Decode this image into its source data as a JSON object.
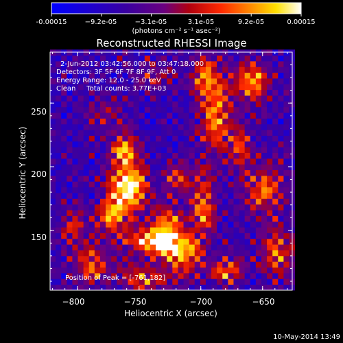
{
  "chart_data": {
    "type": "heatmap",
    "title": "Reconstructed RHESSI Image",
    "xlabel": "Heliocentric X (arcsec)",
    "ylabel": "Heliocentric Y (arcsec)",
    "xlim": [
      -822,
      -626
    ],
    "ylim": [
      103,
      290
    ],
    "xticks": [
      -800,
      -750,
      -700,
      -650
    ],
    "xtick_labels": [
      "−800",
      "−750",
      "−700",
      "−650"
    ],
    "yticks": [
      150,
      200,
      250
    ],
    "ytick_labels": [
      "150",
      "200",
      "250"
    ],
    "colorbar": {
      "range": [
        -0.00015,
        0.00015
      ],
      "tick_labels": [
        "-0.00015",
        "−9.2e-05",
        "−3.1e-05",
        "3.1e-05",
        "9.2e-05",
        "0.00015"
      ],
      "unit_label": "(photons cm⁻² s⁻¹ asec⁻²)",
      "colormap": "blue-purple-red-orange-yellow-white"
    },
    "annotations": [
      "2-Jun-2012 03:42:56.000 to 03:47:18.000",
      "Detectors: 3F 5F 6F 7F 8F 9F, Att 0",
      "Energy Range: 12.0 - 25.0 keV",
      "Clean     Total counts: 3.77E+03"
    ],
    "peak": {
      "label": "Position of Peak = [-761,182]",
      "x": -761,
      "y": 182
    },
    "grid": false
  },
  "footer": {
    "timestamp": "10-May-2014 13:49"
  }
}
